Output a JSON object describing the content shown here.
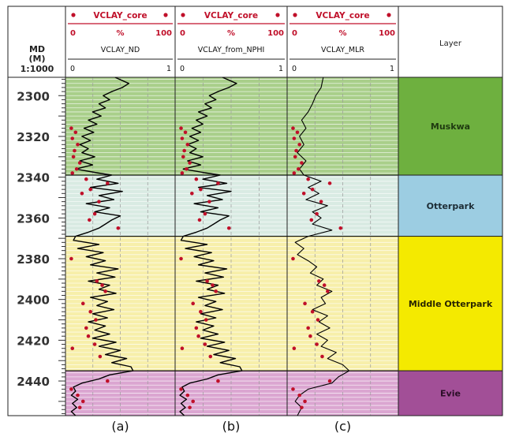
{
  "chart_data": {
    "type": "line",
    "depth_header": {
      "label": "MD",
      "unit": "(M)",
      "scale": "1:1000"
    },
    "depth_ticks": [
      2300,
      2320,
      2340,
      2360,
      2380,
      2400,
      2420,
      2440
    ],
    "ylim": [
      2291,
      2457
    ],
    "core_header": {
      "name": "VCLAY_core",
      "min": "0",
      "unit": "%",
      "max": "100"
    },
    "tracks": [
      {
        "curve": "VCLAY_ND",
        "min": "0",
        "max": "1",
        "caption": "(a)"
      },
      {
        "curve": "VCLAY_from_NPHI",
        "min": "0",
        "max": "1",
        "caption": "(b)"
      },
      {
        "curve": "VCLAY_MLR",
        "min": "0",
        "max": "1",
        "caption": "(c)"
      }
    ],
    "layer_header": "Layer",
    "layers": [
      {
        "name": "Muskwa",
        "top": 2291,
        "base": 2339,
        "track_color": "#a9cf8a",
        "label_color": "#6eb03f",
        "text_color": "#1f3a10"
      },
      {
        "name": "Otterpark",
        "top": 2339,
        "base": 2369,
        "track_color": "#d9ebe3",
        "label_color": "#9ccde2",
        "text_color": "#1d2d36"
      },
      {
        "name": "Middle Otterpark",
        "top": 2369,
        "base": 2435,
        "track_color": "#f7efaa",
        "label_color": "#f4ea00",
        "text_color": "#2a2600"
      },
      {
        "name": "Evie",
        "top": 2435,
        "base": 2457,
        "track_color": "#dba6d1",
        "label_color": "#a24f97",
        "text_color": "#2c0f28"
      }
    ],
    "colors": {
      "core_marker": "#c0102a",
      "curve": "#000000",
      "header_line": "#c0102a"
    },
    "series": [
      {
        "name": "VCLAY_ND",
        "depth": [
          2291,
          2294,
          2296,
          2298,
          2300,
          2302,
          2304,
          2306,
          2308,
          2310,
          2312,
          2314,
          2316,
          2318,
          2320,
          2322,
          2324,
          2326,
          2328,
          2330,
          2332,
          2334,
          2336,
          2338,
          2339,
          2341,
          2343,
          2345,
          2347,
          2349,
          2351,
          2353,
          2355,
          2357,
          2359,
          2361,
          2363,
          2365,
          2367,
          2369,
          2371,
          2373,
          2375,
          2377,
          2379,
          2381,
          2383,
          2385,
          2387,
          2389,
          2391,
          2393,
          2395,
          2397,
          2399,
          2401,
          2403,
          2405,
          2407,
          2409,
          2411,
          2413,
          2415,
          2417,
          2419,
          2421,
          2423,
          2425,
          2427,
          2429,
          2431,
          2433,
          2435,
          2437,
          2439,
          2441,
          2443,
          2445,
          2447,
          2449,
          2451,
          2453,
          2455,
          2457
        ],
        "values": [
          0.45,
          0.58,
          0.52,
          0.42,
          0.34,
          0.4,
          0.3,
          0.36,
          0.24,
          0.32,
          0.2,
          0.28,
          0.16,
          0.25,
          0.14,
          0.22,
          0.12,
          0.2,
          0.14,
          0.26,
          0.12,
          0.24,
          0.08,
          0.3,
          0.42,
          0.28,
          0.48,
          0.22,
          0.52,
          0.3,
          0.44,
          0.18,
          0.4,
          0.26,
          0.5,
          0.42,
          0.36,
          0.3,
          0.2,
          0.08,
          0.06,
          0.3,
          0.1,
          0.34,
          0.18,
          0.36,
          0.22,
          0.48,
          0.28,
          0.45,
          0.2,
          0.4,
          0.3,
          0.46,
          0.22,
          0.38,
          0.28,
          0.44,
          0.24,
          0.38,
          0.2,
          0.36,
          0.26,
          0.4,
          0.24,
          0.46,
          0.3,
          0.5,
          0.36,
          0.56,
          0.42,
          0.6,
          0.62,
          0.4,
          0.3,
          0.14,
          0.06,
          0.08,
          0.04,
          0.1,
          0.05,
          0.09,
          0.04,
          0.08
        ]
      },
      {
        "name": "VCLAY_from_NPHI",
        "depth": [
          2291,
          2294,
          2296,
          2298,
          2300,
          2302,
          2304,
          2306,
          2308,
          2310,
          2312,
          2314,
          2316,
          2318,
          2320,
          2322,
          2324,
          2326,
          2328,
          2330,
          2332,
          2334,
          2336,
          2338,
          2339,
          2341,
          2343,
          2345,
          2347,
          2349,
          2351,
          2353,
          2355,
          2357,
          2359,
          2361,
          2363,
          2365,
          2367,
          2369,
          2371,
          2373,
          2375,
          2377,
          2379,
          2381,
          2383,
          2385,
          2387,
          2389,
          2391,
          2393,
          2395,
          2397,
          2399,
          2401,
          2403,
          2405,
          2407,
          2409,
          2411,
          2413,
          2415,
          2417,
          2419,
          2421,
          2423,
          2425,
          2427,
          2429,
          2431,
          2433,
          2435,
          2437,
          2439,
          2441,
          2443,
          2445,
          2447,
          2449,
          2451,
          2453,
          2455,
          2457
        ],
        "values": [
          0.42,
          0.55,
          0.48,
          0.38,
          0.3,
          0.36,
          0.26,
          0.32,
          0.2,
          0.28,
          0.18,
          0.24,
          0.14,
          0.22,
          0.12,
          0.2,
          0.1,
          0.18,
          0.12,
          0.24,
          0.1,
          0.22,
          0.06,
          0.28,
          0.4,
          0.24,
          0.46,
          0.2,
          0.5,
          0.28,
          0.42,
          0.16,
          0.38,
          0.22,
          0.48,
          0.4,
          0.34,
          0.28,
          0.18,
          0.06,
          0.04,
          0.28,
          0.08,
          0.32,
          0.16,
          0.34,
          0.2,
          0.46,
          0.26,
          0.43,
          0.18,
          0.38,
          0.28,
          0.44,
          0.2,
          0.36,
          0.26,
          0.42,
          0.22,
          0.36,
          0.18,
          0.34,
          0.24,
          0.38,
          0.22,
          0.44,
          0.28,
          0.48,
          0.34,
          0.54,
          0.4,
          0.58,
          0.6,
          0.38,
          0.28,
          0.12,
          0.05,
          0.07,
          0.03,
          0.09,
          0.04,
          0.08,
          0.03,
          0.07
        ]
      },
      {
        "name": "VCLAY_MLR",
        "depth": [
          2291,
          2296,
          2300,
          2304,
          2308,
          2312,
          2316,
          2320,
          2324,
          2328,
          2332,
          2336,
          2339,
          2342,
          2345,
          2348,
          2351,
          2354,
          2357,
          2360,
          2363,
          2366,
          2369,
          2372,
          2375,
          2378,
          2381,
          2384,
          2387,
          2390,
          2393,
          2396,
          2399,
          2402,
          2405,
          2408,
          2411,
          2414,
          2417,
          2420,
          2423,
          2426,
          2429,
          2432,
          2435,
          2438,
          2441,
          2444,
          2447,
          2450,
          2453,
          2457
        ],
        "values": [
          0.32,
          0.3,
          0.25,
          0.22,
          0.18,
          0.12,
          0.16,
          0.1,
          0.14,
          0.08,
          0.16,
          0.1,
          0.14,
          0.3,
          0.18,
          0.28,
          0.16,
          0.36,
          0.22,
          0.3,
          0.22,
          0.4,
          0.18,
          0.06,
          0.14,
          0.08,
          0.18,
          0.26,
          0.2,
          0.32,
          0.26,
          0.4,
          0.3,
          0.34,
          0.22,
          0.36,
          0.28,
          0.38,
          0.26,
          0.36,
          0.3,
          0.44,
          0.36,
          0.5,
          0.56,
          0.46,
          0.4,
          0.18,
          0.1,
          0.06,
          0.12,
          0.08
        ]
      },
      {
        "name": "VCLAY_core",
        "depth": [
          2316,
          2318,
          2321,
          2324,
          2327,
          2330,
          2333,
          2336,
          2338,
          2341,
          2343,
          2346,
          2348,
          2352,
          2358,
          2361,
          2365,
          2380,
          2391,
          2393,
          2396,
          2402,
          2406,
          2410,
          2414,
          2418,
          2422,
          2424,
          2428,
          2440,
          2444,
          2447,
          2450,
          2453
        ],
        "values": [
          4,
          8,
          5,
          10,
          7,
          6,
          12,
          9,
          5,
          18,
          38,
          22,
          14,
          30,
          26,
          21,
          48,
          4,
          28,
          33,
          36,
          15,
          22,
          27,
          18,
          20,
          26,
          5,
          31,
          38,
          4,
          10,
          15,
          12
        ]
      }
    ]
  }
}
